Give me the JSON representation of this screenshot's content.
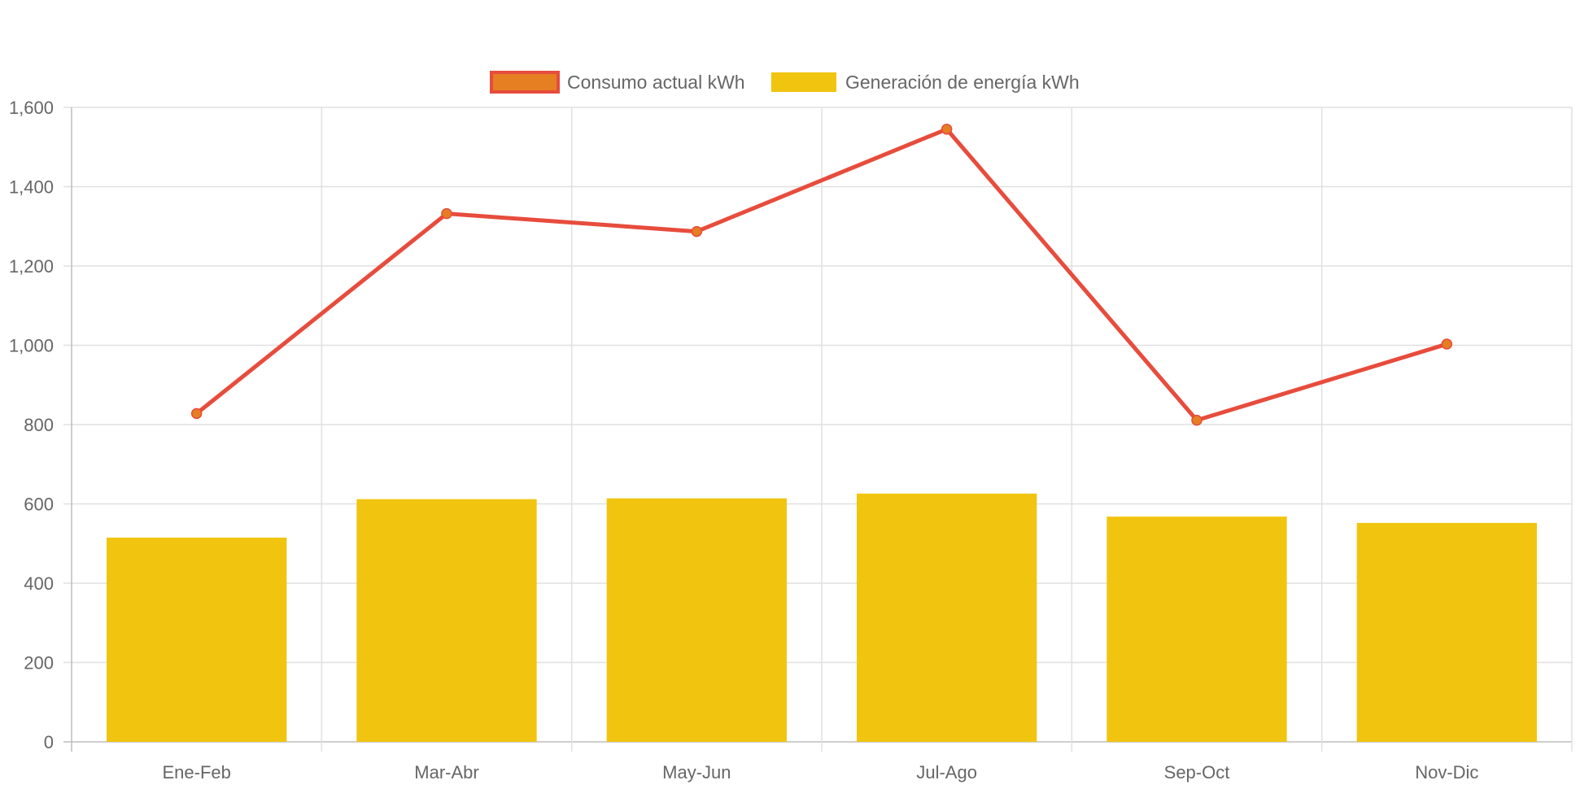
{
  "chart_data": {
    "type": "bar",
    "categories": [
      "Ene-Feb",
      "Mar-Abr",
      "May-Jun",
      "Jul-Ago",
      "Sep-Oct",
      "Nov-Dic"
    ],
    "series": [
      {
        "name": "Consumo actual kWh",
        "type": "line",
        "values": [
          828,
          1332,
          1287,
          1545,
          811,
          1003
        ],
        "line_color": "#e74c3c",
        "point_color": "#e67e22"
      },
      {
        "name": "Generación de energía kWh",
        "type": "bar",
        "values": [
          515,
          612,
          614,
          626,
          568,
          552
        ],
        "color": "#f1c40f"
      }
    ],
    "ylim": [
      0,
      1600
    ],
    "yticks": [
      0,
      200,
      400,
      600,
      800,
      1000,
      1200,
      1400,
      1600
    ],
    "ytick_labels": [
      "0",
      "200",
      "400",
      "600",
      "800",
      "1,000",
      "1,200",
      "1,400",
      "1,600"
    ],
    "grid": true,
    "legend_position": "top-center"
  }
}
